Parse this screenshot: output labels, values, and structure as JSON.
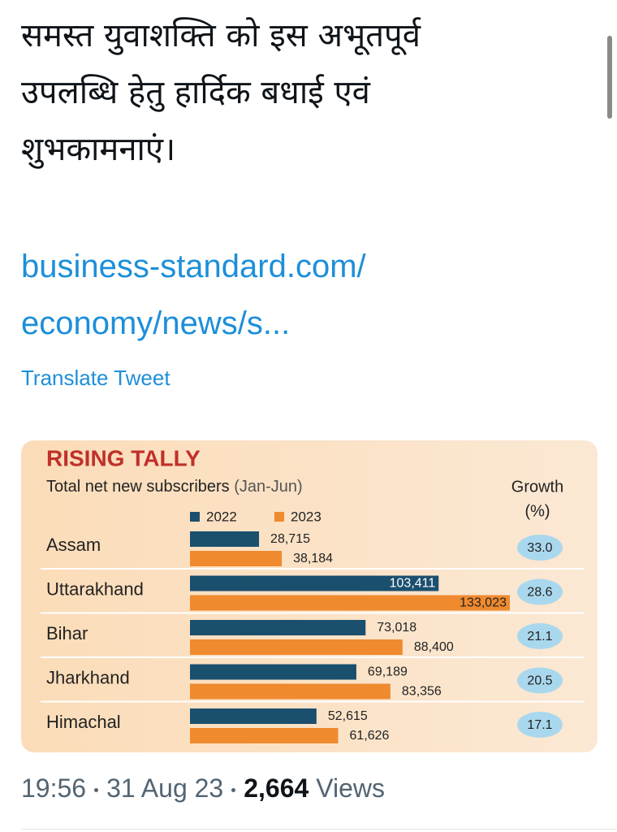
{
  "tweet": {
    "text_lines": [
      "समस्त युवाशक्ति को इस अभूतपूर्व",
      "उपलब्धि हेतु हार्दिक बधाई एवं",
      "शुभकामनाएं।"
    ],
    "link_lines": [
      "business-standard.com/",
      "economy/news/s..."
    ],
    "translate": "Translate Tweet",
    "time": "19:56",
    "date": "31 Aug 23",
    "views_count": "2,664",
    "views_label": "Views"
  },
  "chart_data": {
    "type": "bar",
    "orientation": "horizontal",
    "title": "RISING TALLY",
    "subtitle": "Total net new subscribers",
    "subtitle_period": "(Jan-Jun)",
    "categories": [
      "Assam",
      "Uttarakhand",
      "Bihar",
      "Jharkhand",
      "Himachal"
    ],
    "series": [
      {
        "name": "2022",
        "color": "#1b4f6e",
        "values": [
          28715,
          103411,
          73018,
          69189,
          52615
        ],
        "value_labels": [
          "28,715",
          "103,411",
          "73,018",
          "69,189",
          "52,615"
        ]
      },
      {
        "name": "2023",
        "color": "#ef8a2f",
        "values": [
          38184,
          133023,
          88400,
          83356,
          61626
        ],
        "value_labels": [
          "38,184",
          "133,023",
          "88,400",
          "83,356",
          "61,626"
        ]
      }
    ],
    "growth": {
      "header": "Growth",
      "unit": "(%)",
      "values": [
        33,
        28.6,
        21.1,
        20.5,
        17.1
      ],
      "value_labels": [
        "33.0",
        "28.6",
        "21.1",
        "20.5",
        "17.1"
      ]
    }
  }
}
